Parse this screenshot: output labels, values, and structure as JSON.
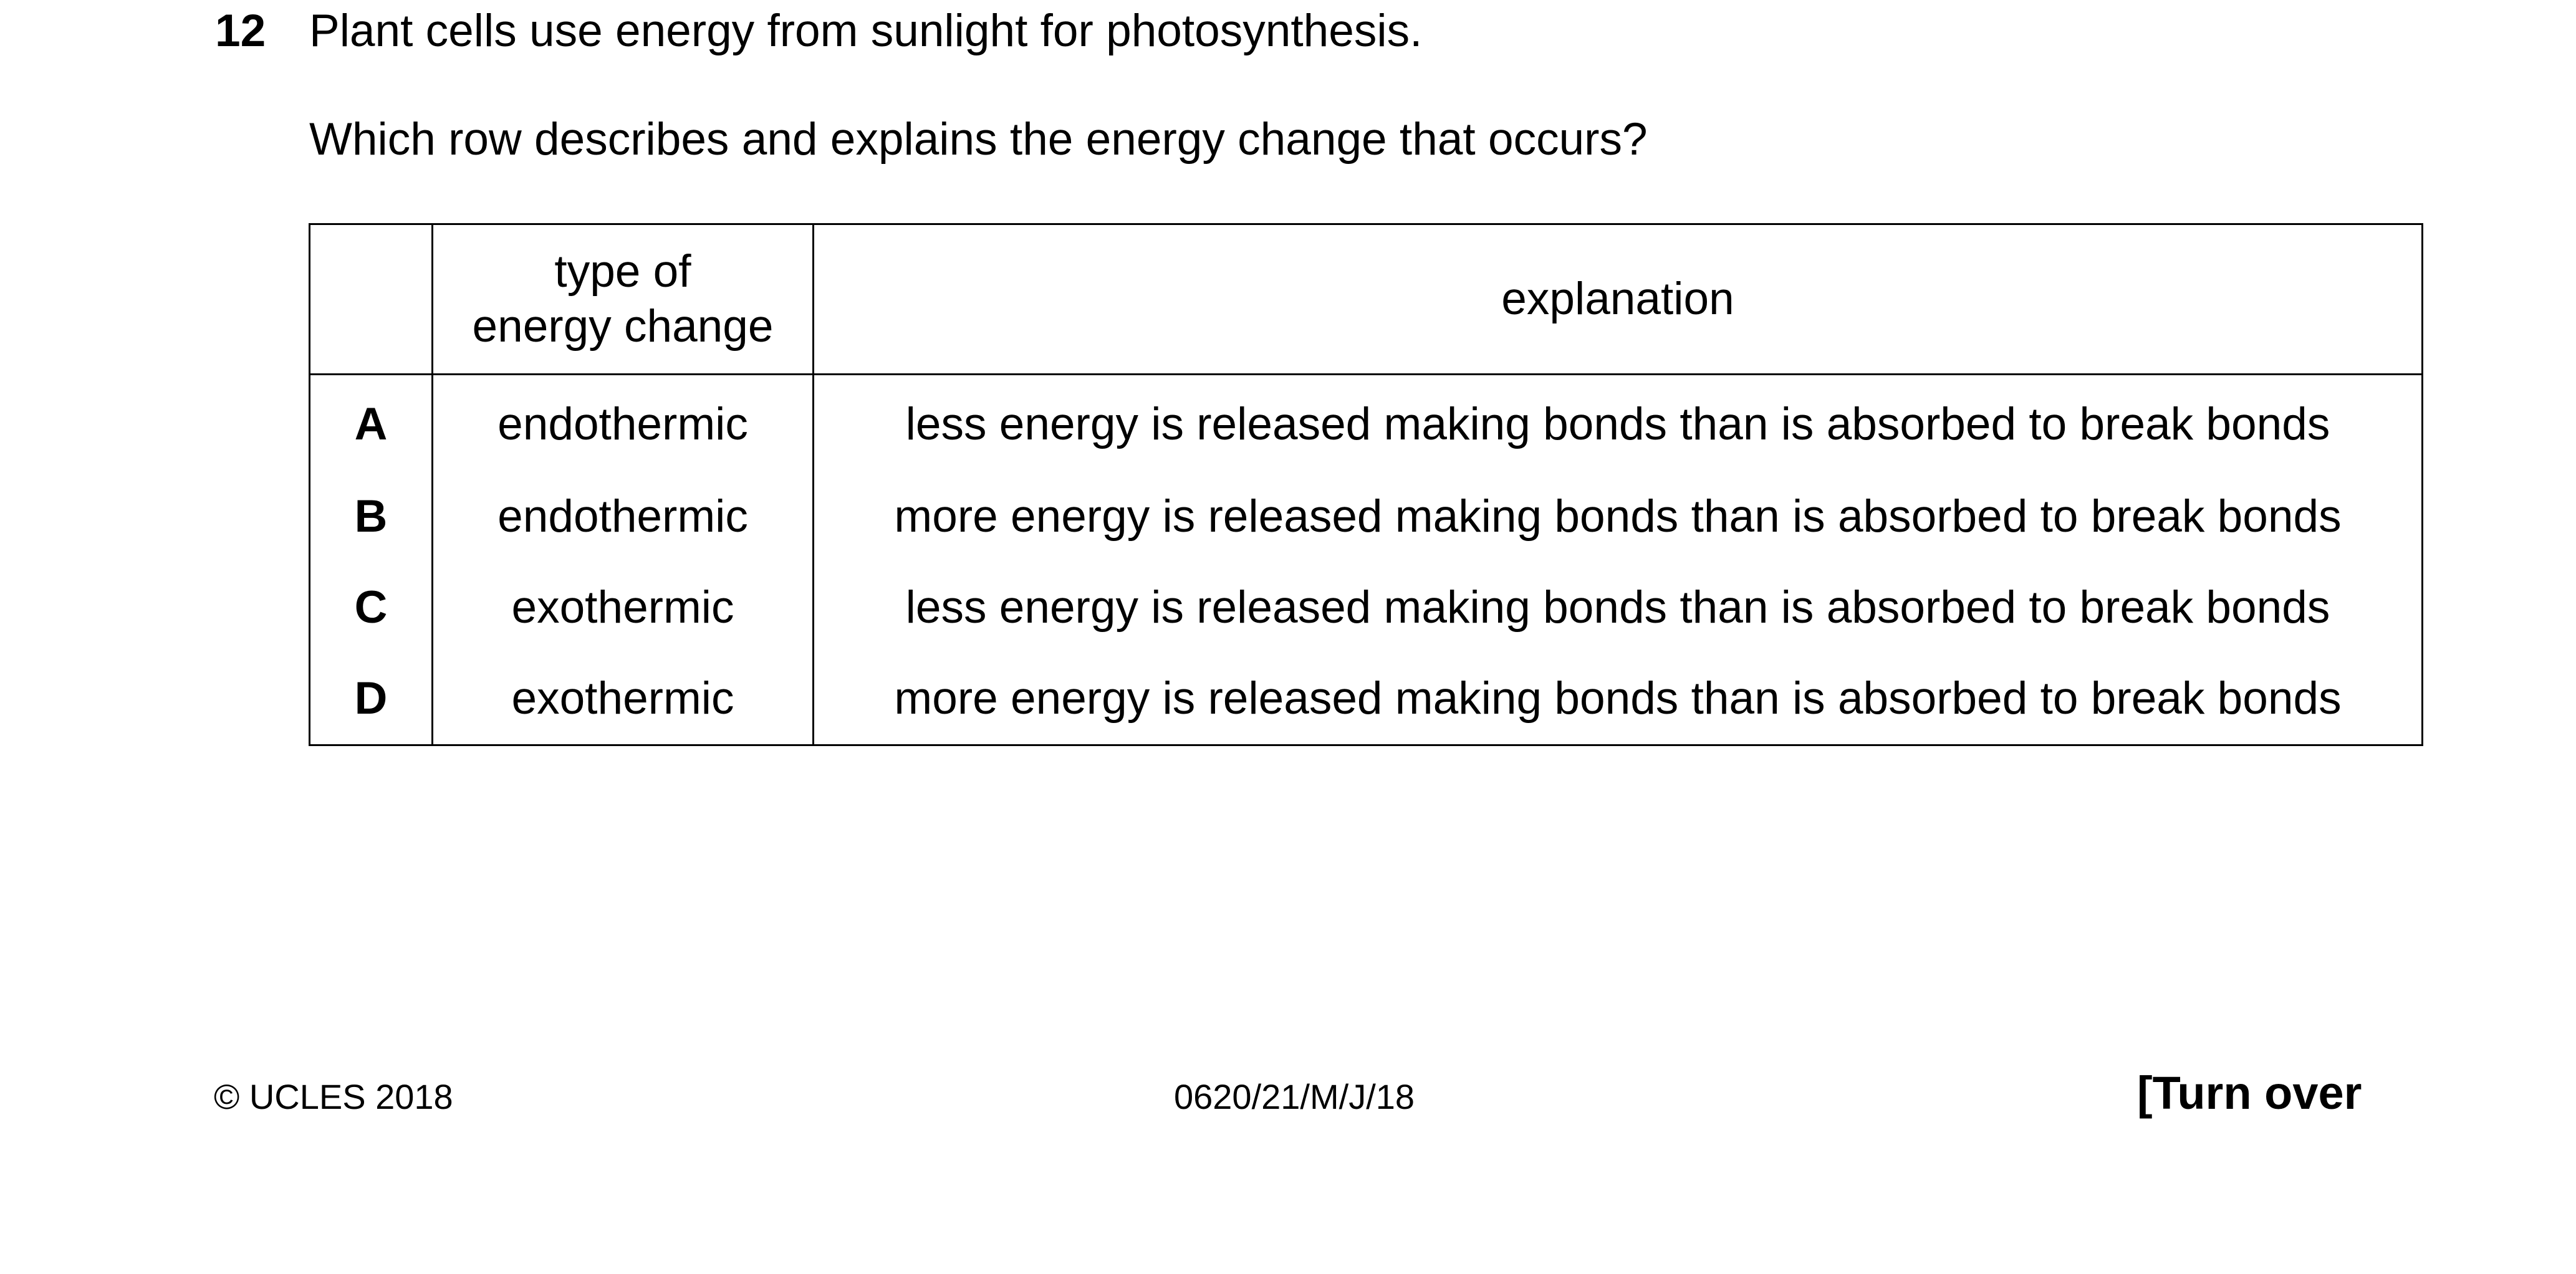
{
  "question": {
    "number": "12",
    "stem": "Plant cells use energy from sunlight for photosynthesis.",
    "prompt": "Which row describes and explains the energy change that occurs?"
  },
  "table": {
    "headers": {
      "letter": "",
      "type_line1": "type of",
      "type_line2": "energy change",
      "explanation": "explanation"
    },
    "rows": [
      {
        "letter": "A",
        "type": "endothermic",
        "explanation": "less energy is released making bonds than is absorbed to break bonds"
      },
      {
        "letter": "B",
        "type": "endothermic",
        "explanation": "more energy is released making bonds than is absorbed to break bonds"
      },
      {
        "letter": "C",
        "type": "exothermic",
        "explanation": "less energy is released making bonds than is absorbed to break bonds"
      },
      {
        "letter": "D",
        "type": "exothermic",
        "explanation": "more energy is released making bonds than is absorbed to break bonds"
      }
    ]
  },
  "footer": {
    "copyright": "© UCLES 2018",
    "code": "0620/21/M/J/18",
    "turn_over": "[Turn over"
  }
}
